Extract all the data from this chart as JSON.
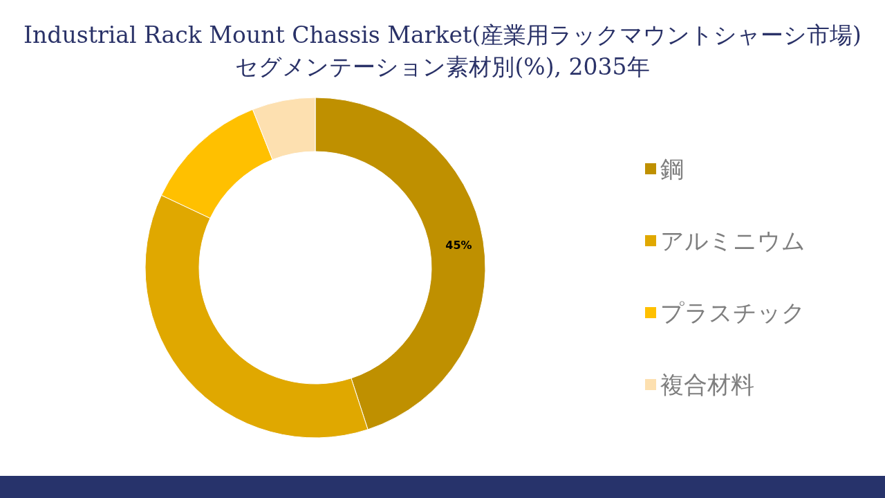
{
  "chart_data": {
    "type": "donut",
    "title": "Industrial Rack Mount Chassis Market(産業用ラックマウントシャーシ市場)セグメンテーション素材別(%), 2035年",
    "categories": [
      "鋼",
      "アルミニウム",
      "プラスチック",
      "複合材料"
    ],
    "values": [
      45,
      37,
      12,
      6
    ],
    "colors": [
      "#bf9000",
      "#e0a800",
      "#ffc000",
      "#fde0b0"
    ],
    "value_labels": [
      "45%",
      null,
      null,
      null
    ],
    "legend": "right"
  }
}
